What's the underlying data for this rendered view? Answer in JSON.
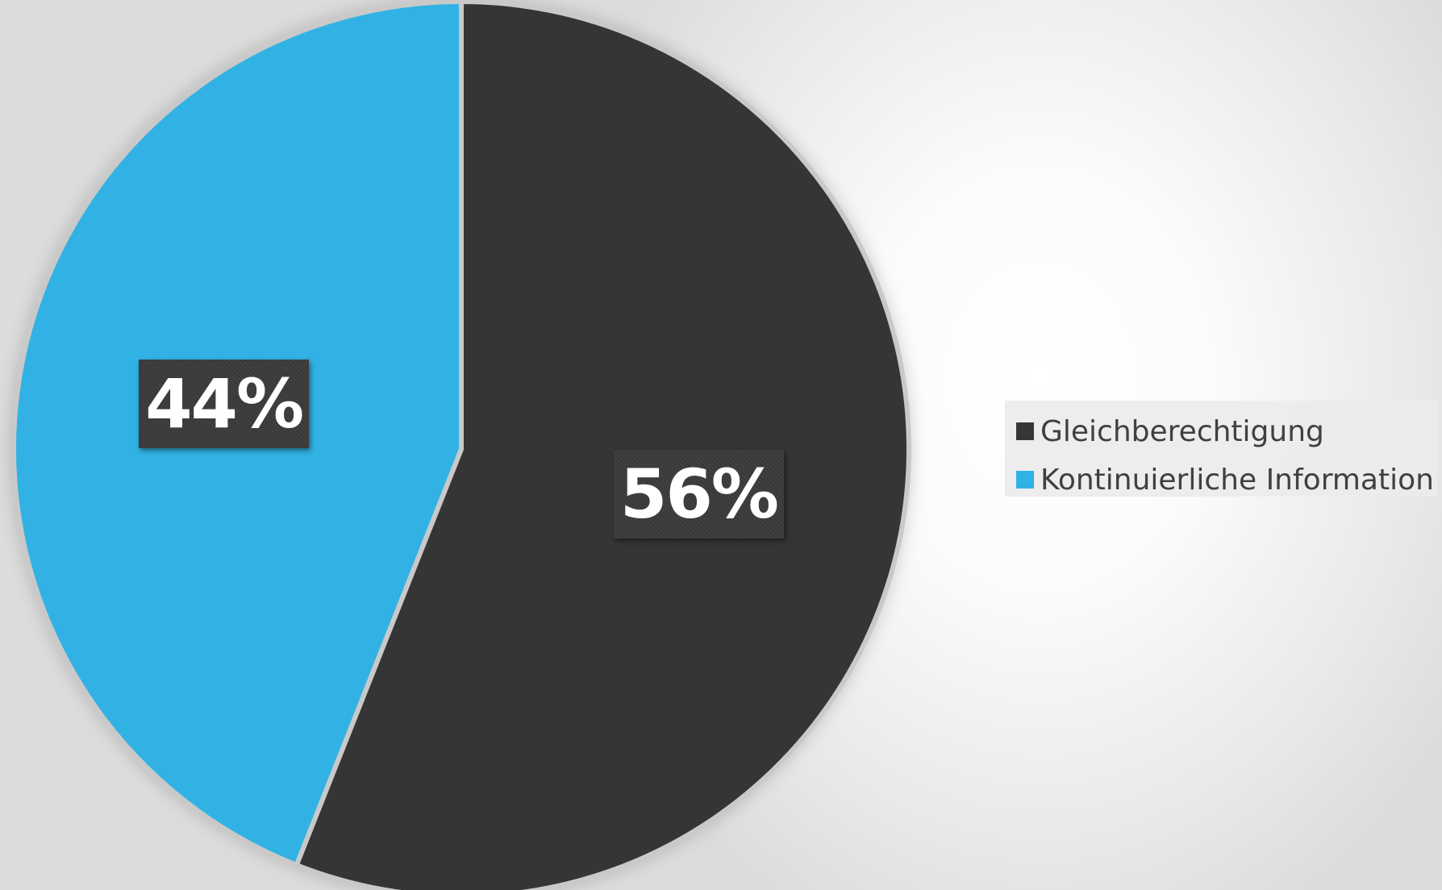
{
  "chart_data": {
    "type": "pie",
    "title": "",
    "slices": [
      {
        "name": "Gleichberechtigung",
        "value": 56,
        "label": "56%",
        "color": "#363636"
      },
      {
        "name": "Kontinuierliche Information",
        "value": 44,
        "label": "44%",
        "color": "#31b2e4"
      }
    ],
    "start_angle_deg": 0,
    "direction": "clockwise",
    "legend": {
      "position": "right",
      "items": [
        {
          "label": "Gleichberechtigung",
          "color": "#363636"
        },
        {
          "label": "Kontinuierliche Information",
          "color": "#31b2e4"
        }
      ]
    }
  }
}
